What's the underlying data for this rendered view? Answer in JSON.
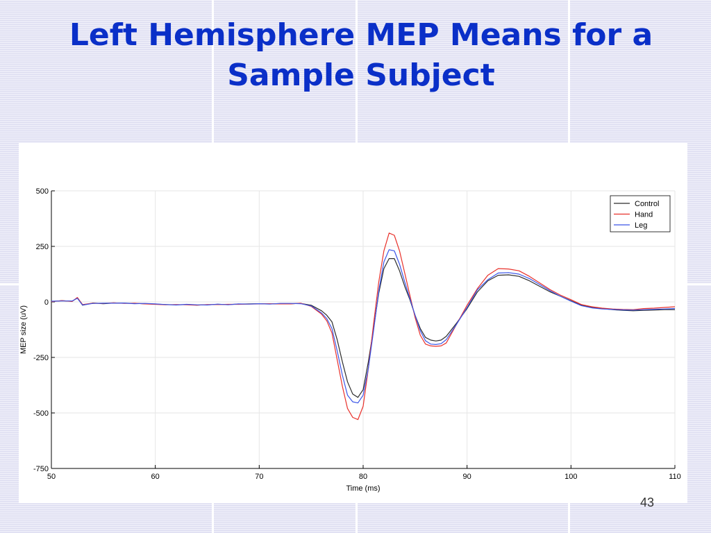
{
  "slide": {
    "title": "Left Hemisphere MEP Means for a Sample Subject",
    "page_number": "43"
  },
  "colors": {
    "title": "#0a2fc8",
    "background": "#e8e8f6",
    "control": "#2b2b2b",
    "hand": "#e8302a",
    "leg": "#3a55e8"
  },
  "chart_data": {
    "type": "line",
    "title": "",
    "xlabel": "Time (ms)",
    "ylabel": "MEP size (uV)",
    "xlim": [
      50,
      110
    ],
    "ylim": [
      -750,
      500
    ],
    "xticks": [
      50,
      60,
      70,
      80,
      90,
      100,
      110
    ],
    "yticks": [
      500,
      250,
      0,
      -250,
      -500,
      -750
    ],
    "grid": true,
    "legend_position": "top-right",
    "x": [
      50,
      51,
      52,
      52.5,
      53,
      54,
      55,
      56,
      57,
      58,
      59,
      60,
      61,
      62,
      63,
      64,
      65,
      66,
      67,
      68,
      69,
      70,
      71,
      72,
      73,
      74,
      75,
      76,
      76.5,
      77,
      77.5,
      78,
      78.5,
      79,
      79.5,
      80,
      80.5,
      81,
      81.5,
      82,
      82.5,
      83,
      83.5,
      84,
      84.5,
      85,
      85.5,
      86,
      86.5,
      87,
      87.5,
      88,
      89,
      90,
      91,
      92,
      93,
      94,
      95,
      96,
      97,
      98,
      99,
      100,
      101,
      102,
      103,
      104,
      105,
      106,
      107,
      108,
      109,
      110
    ],
    "series": [
      {
        "name": "Control",
        "color": "#2b2b2b",
        "values": [
          2,
          5,
          3,
          18,
          -15,
          -5,
          -8,
          -5,
          -6,
          -7,
          -8,
          -10,
          -12,
          -13,
          -12,
          -14,
          -13,
          -11,
          -12,
          -10,
          -9,
          -8,
          -9,
          -8,
          -8,
          -7,
          -15,
          -40,
          -60,
          -90,
          -170,
          -270,
          -360,
          -415,
          -430,
          -395,
          -270,
          -120,
          40,
          150,
          195,
          195,
          140,
          70,
          10,
          -60,
          -120,
          -160,
          -172,
          -176,
          -172,
          -155,
          -95,
          -30,
          45,
          95,
          120,
          122,
          115,
          95,
          70,
          45,
          25,
          5,
          -15,
          -25,
          -30,
          -35,
          -38,
          -40,
          -38,
          -37,
          -35,
          -35
        ]
      },
      {
        "name": "Hand",
        "color": "#e8302a",
        "values": [
          1,
          6,
          2,
          20,
          -12,
          -6,
          -7,
          -4,
          -7,
          -6,
          -9,
          -11,
          -13,
          -12,
          -13,
          -15,
          -12,
          -12,
          -11,
          -11,
          -10,
          -9,
          -8,
          -9,
          -9,
          -6,
          -20,
          -55,
          -85,
          -140,
          -260,
          -380,
          -480,
          -520,
          -530,
          -470,
          -300,
          -100,
          90,
          230,
          310,
          300,
          230,
          130,
          30,
          -70,
          -150,
          -190,
          -198,
          -200,
          -198,
          -185,
          -100,
          -15,
          60,
          120,
          150,
          148,
          140,
          115,
          85,
          55,
          30,
          10,
          -12,
          -22,
          -28,
          -32,
          -34,
          -35,
          -30,
          -28,
          -25,
          -22
        ]
      },
      {
        "name": "Leg",
        "color": "#3a55e8",
        "values": [
          3,
          4,
          4,
          16,
          -14,
          -7,
          -6,
          -6,
          -5,
          -8,
          -7,
          -9,
          -12,
          -14,
          -11,
          -13,
          -14,
          -10,
          -13,
          -9,
          -10,
          -8,
          -10,
          -7,
          -7,
          -8,
          -18,
          -50,
          -75,
          -120,
          -220,
          -330,
          -420,
          -450,
          -455,
          -420,
          -300,
          -130,
          50,
          180,
          235,
          230,
          170,
          90,
          15,
          -60,
          -130,
          -175,
          -190,
          -192,
          -188,
          -170,
          -100,
          -25,
          55,
          100,
          130,
          132,
          125,
          105,
          78,
          50,
          25,
          3,
          -17,
          -27,
          -32,
          -34,
          -36,
          -37,
          -35,
          -33,
          -32,
          -30
        ]
      }
    ]
  }
}
